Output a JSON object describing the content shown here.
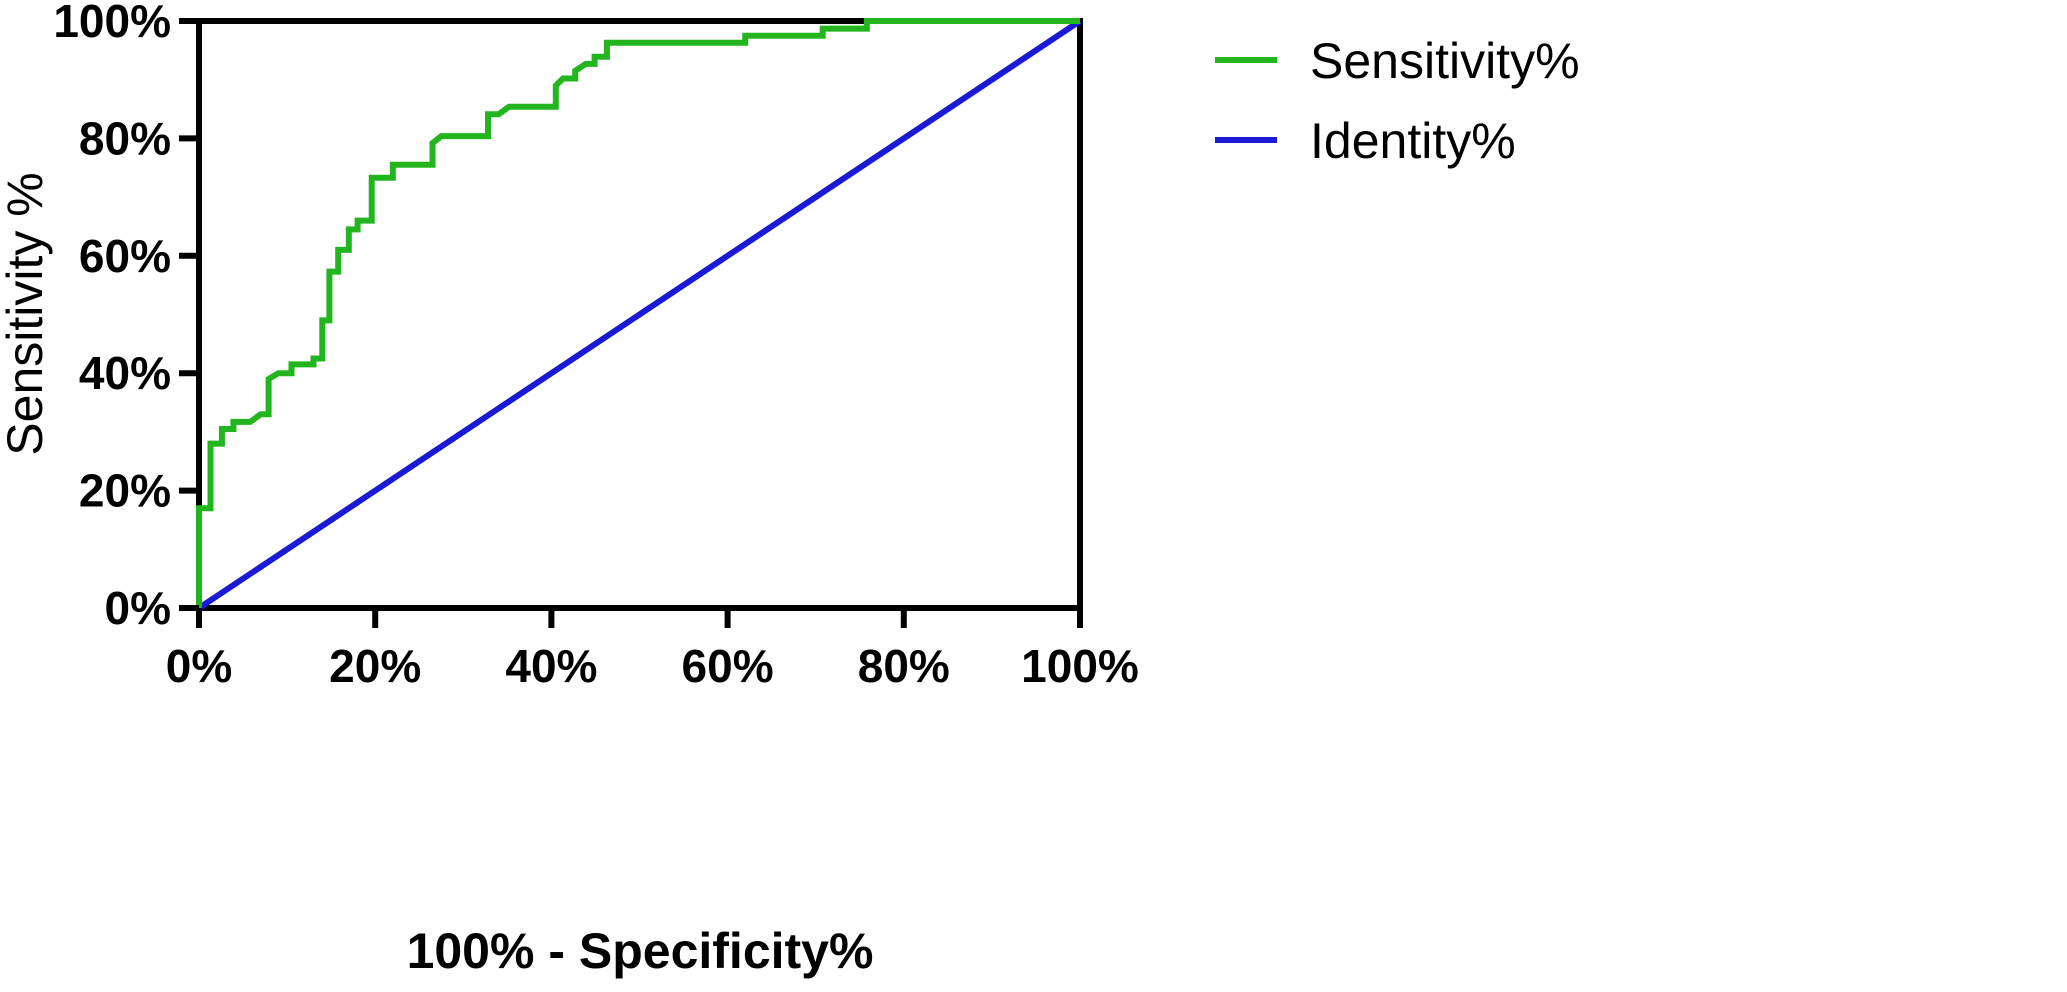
{
  "chart_data": {
    "type": "line",
    "title": "",
    "xlabel": "100% - Specificity%",
    "ylabel": "Sensitivity %",
    "xlim": [
      0,
      100
    ],
    "ylim": [
      0,
      100
    ],
    "x_ticks": [
      "0%",
      "20%",
      "40%",
      "60%",
      "80%",
      "100%"
    ],
    "y_ticks": [
      "0%",
      "20%",
      "40%",
      "60%",
      "80%",
      "100%"
    ],
    "x_tick_values": [
      0,
      20,
      40,
      60,
      80,
      100
    ],
    "y_tick_values": [
      0,
      20,
      40,
      60,
      80,
      100
    ],
    "grid": false,
    "legend_position": "right",
    "series": [
      {
        "name": "Sensitivity%",
        "color": "#22b51e",
        "points": [
          [
            0,
            0
          ],
          [
            0,
            17
          ],
          [
            1.3,
            17
          ],
          [
            1.3,
            28
          ],
          [
            2.6,
            28
          ],
          [
            2.6,
            30.5
          ],
          [
            3.9,
            30.5
          ],
          [
            3.9,
            31.7
          ],
          [
            5.8,
            31.7
          ],
          [
            7,
            33
          ],
          [
            7.9,
            33
          ],
          [
            7.9,
            39
          ],
          [
            9,
            40
          ],
          [
            10.5,
            40
          ],
          [
            10.5,
            41.5
          ],
          [
            13,
            41.5
          ],
          [
            13,
            42.5
          ],
          [
            14,
            42.5
          ],
          [
            14,
            49
          ],
          [
            14.8,
            49
          ],
          [
            14.8,
            57.3
          ],
          [
            15.8,
            57.3
          ],
          [
            15.8,
            61
          ],
          [
            17,
            61
          ],
          [
            17,
            64.5
          ],
          [
            18,
            64.5
          ],
          [
            18,
            66
          ],
          [
            19.6,
            66
          ],
          [
            19.6,
            73.3
          ],
          [
            22,
            73.3
          ],
          [
            22,
            75.5
          ],
          [
            26.5,
            75.5
          ],
          [
            26.5,
            79.2
          ],
          [
            27.5,
            80.4
          ],
          [
            32.8,
            80.4
          ],
          [
            32.8,
            84.1
          ],
          [
            34,
            84.1
          ],
          [
            35.2,
            85.4
          ],
          [
            40.5,
            85.4
          ],
          [
            40.5,
            89
          ],
          [
            41.3,
            90.2
          ],
          [
            42.7,
            90.2
          ],
          [
            42.7,
            91.5
          ],
          [
            43.9,
            92.7
          ],
          [
            44.9,
            92.7
          ],
          [
            44.9,
            93.9
          ],
          [
            46.3,
            93.9
          ],
          [
            46.3,
            96.3
          ],
          [
            62,
            96.3
          ],
          [
            62,
            97.5
          ],
          [
            70.8,
            97.5
          ],
          [
            70.8,
            98.7
          ],
          [
            75.8,
            98.7
          ],
          [
            75.8,
            100
          ],
          [
            100,
            100
          ]
        ]
      },
      {
        "name": "Identity%",
        "color": "#1a1ad6",
        "points": [
          [
            0,
            0
          ],
          [
            100,
            100
          ]
        ]
      }
    ]
  }
}
